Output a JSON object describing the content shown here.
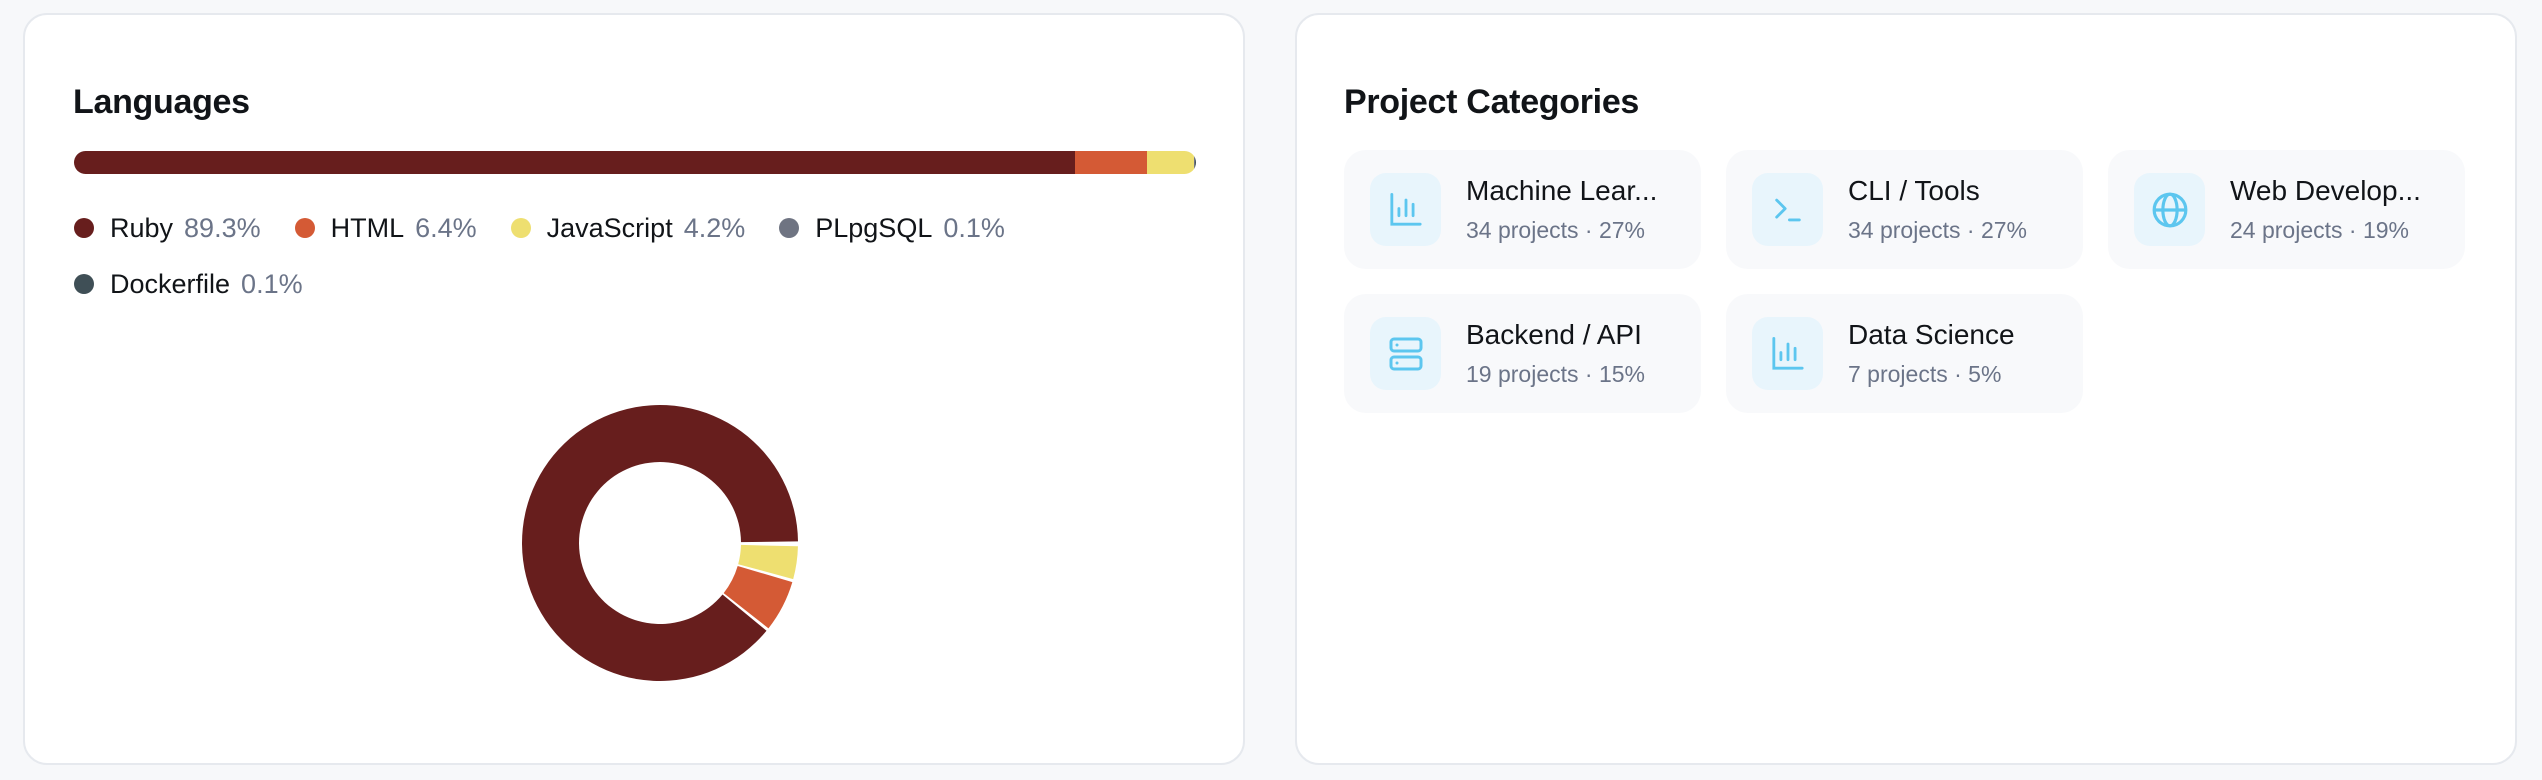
{
  "languages": {
    "title": "Languages",
    "items": [
      {
        "name": "Ruby",
        "percent_label": "89.3%",
        "value": 89.3,
        "color": "#671e1d"
      },
      {
        "name": "HTML",
        "percent_label": "6.4%",
        "value": 6.4,
        "color": "#d45a35"
      },
      {
        "name": "JavaScript",
        "percent_label": "4.2%",
        "value": 4.2,
        "color": "#eedf70"
      },
      {
        "name": "PLpgSQL",
        "percent_label": "0.1%",
        "value": 0.1,
        "color": "#6f7482"
      },
      {
        "name": "Dockerfile",
        "percent_label": "0.1%",
        "value": 0.1,
        "color": "#3f4f56"
      }
    ]
  },
  "categories": {
    "title": "Project Categories",
    "icon_color": "#5cc6ef",
    "items": [
      {
        "name": "Machine Lear...",
        "subtitle": "34 projects · 27%",
        "icon": "bar-chart-icon"
      },
      {
        "name": "CLI / Tools",
        "subtitle": "34 projects · 27%",
        "icon": "terminal-icon"
      },
      {
        "name": "Web Develop...",
        "subtitle": "24 projects · 19%",
        "icon": "globe-icon"
      },
      {
        "name": "Backend / API",
        "subtitle": "19 projects · 15%",
        "icon": "server-icon"
      },
      {
        "name": "Data Science",
        "subtitle": "7 projects · 5%",
        "icon": "bar-chart-icon"
      }
    ]
  }
}
